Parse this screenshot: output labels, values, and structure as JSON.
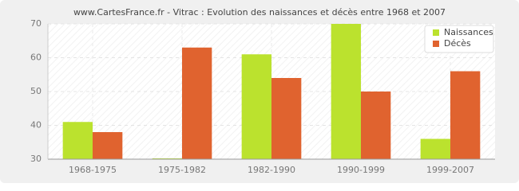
{
  "chart_data": {
    "type": "bar",
    "title": "www.CartesFrance.fr - Vitrac : Evolution des naissances et décès entre 1968 et 2007",
    "categories": [
      "1968-1975",
      "1975-1982",
      "1982-1990",
      "1990-1999",
      "1999-2007"
    ],
    "series": [
      {
        "name": "Naissances",
        "color": "#bbe22e",
        "values": [
          41,
          30,
          61,
          70,
          36
        ]
      },
      {
        "name": "Décès",
        "color": "#e0632f",
        "values": [
          38,
          63,
          54,
          50,
          56
        ]
      }
    ],
    "ylim": [
      30,
      70
    ],
    "yticks": [
      30,
      40,
      50,
      60,
      70
    ],
    "grid": true,
    "legend": "top-right"
  }
}
